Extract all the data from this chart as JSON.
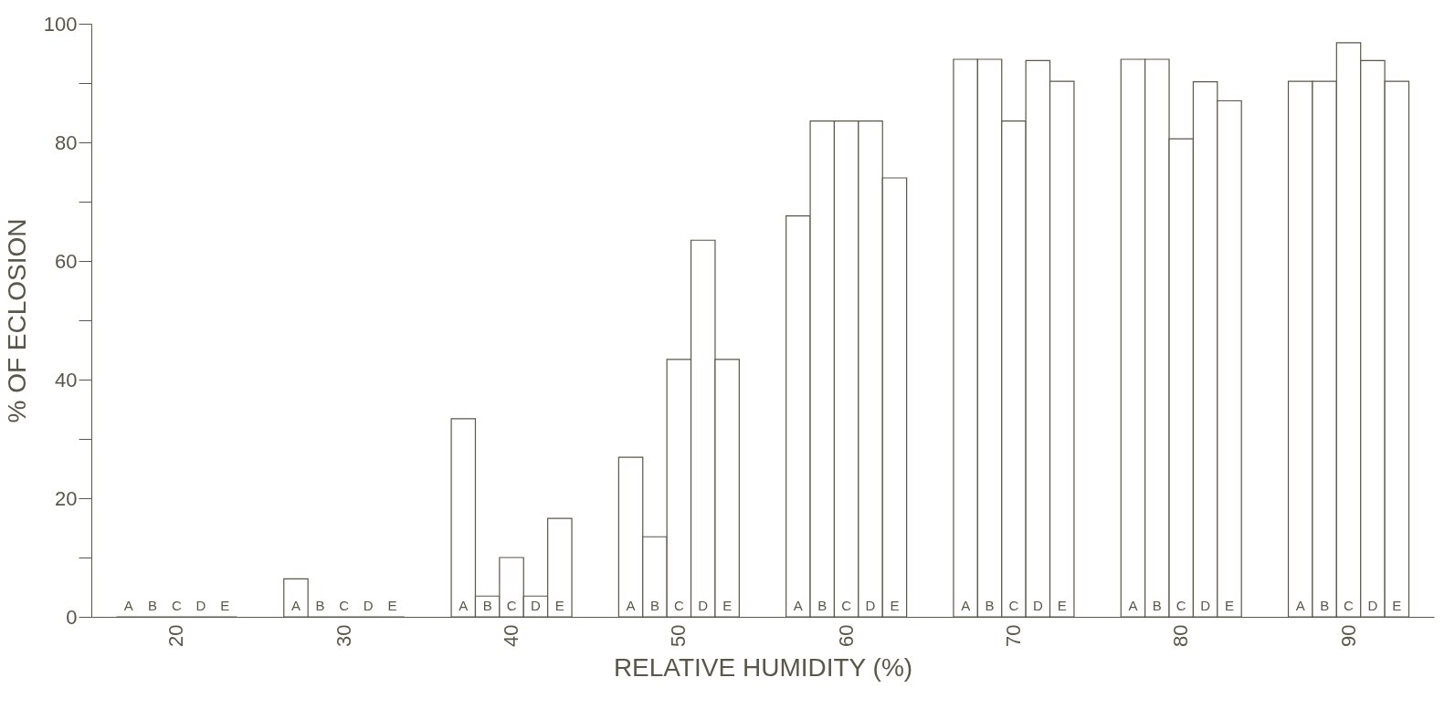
{
  "chart_data": {
    "type": "bar",
    "xlabel": "RELATIVE HUMIDITY (%)",
    "ylabel": "% OF ECLOSION",
    "categories": [
      "20",
      "30",
      "40",
      "50",
      "60",
      "70",
      "80",
      "90"
    ],
    "series": [
      {
        "name": "A",
        "color": "#ffffff",
        "values": [
          0,
          6.4,
          33.4,
          26.9,
          67.6,
          94,
          94,
          90.3
        ]
      },
      {
        "name": "B",
        "color": "#ffffff",
        "values": [
          0,
          0,
          3.5,
          13.5,
          83.6,
          94,
          94,
          90.3
        ]
      },
      {
        "name": "C",
        "color": "#ffffff",
        "values": [
          0,
          0,
          10,
          43.4,
          83.6,
          83.6,
          80.6,
          96.8
        ]
      },
      {
        "name": "D",
        "color": "#ffffff",
        "values": [
          0,
          0,
          3.5,
          63.5,
          83.6,
          93.8,
          90.2,
          93.8
        ]
      },
      {
        "name": "E",
        "color": "#ffffff",
        "values": [
          0,
          0,
          16.6,
          43.4,
          74,
          90.3,
          87,
          90.3
        ]
      }
    ],
    "ylim": [
      0,
      100
    ],
    "yticks": [
      0,
      {
        "value": 10,
        "label": null
      },
      20,
      {
        "value": 30,
        "label": null
      },
      40,
      {
        "value": 50,
        "label": null
      },
      60,
      {
        "value": 70,
        "label": null
      },
      80,
      {
        "value": 90,
        "label": null
      },
      100
    ]
  }
}
